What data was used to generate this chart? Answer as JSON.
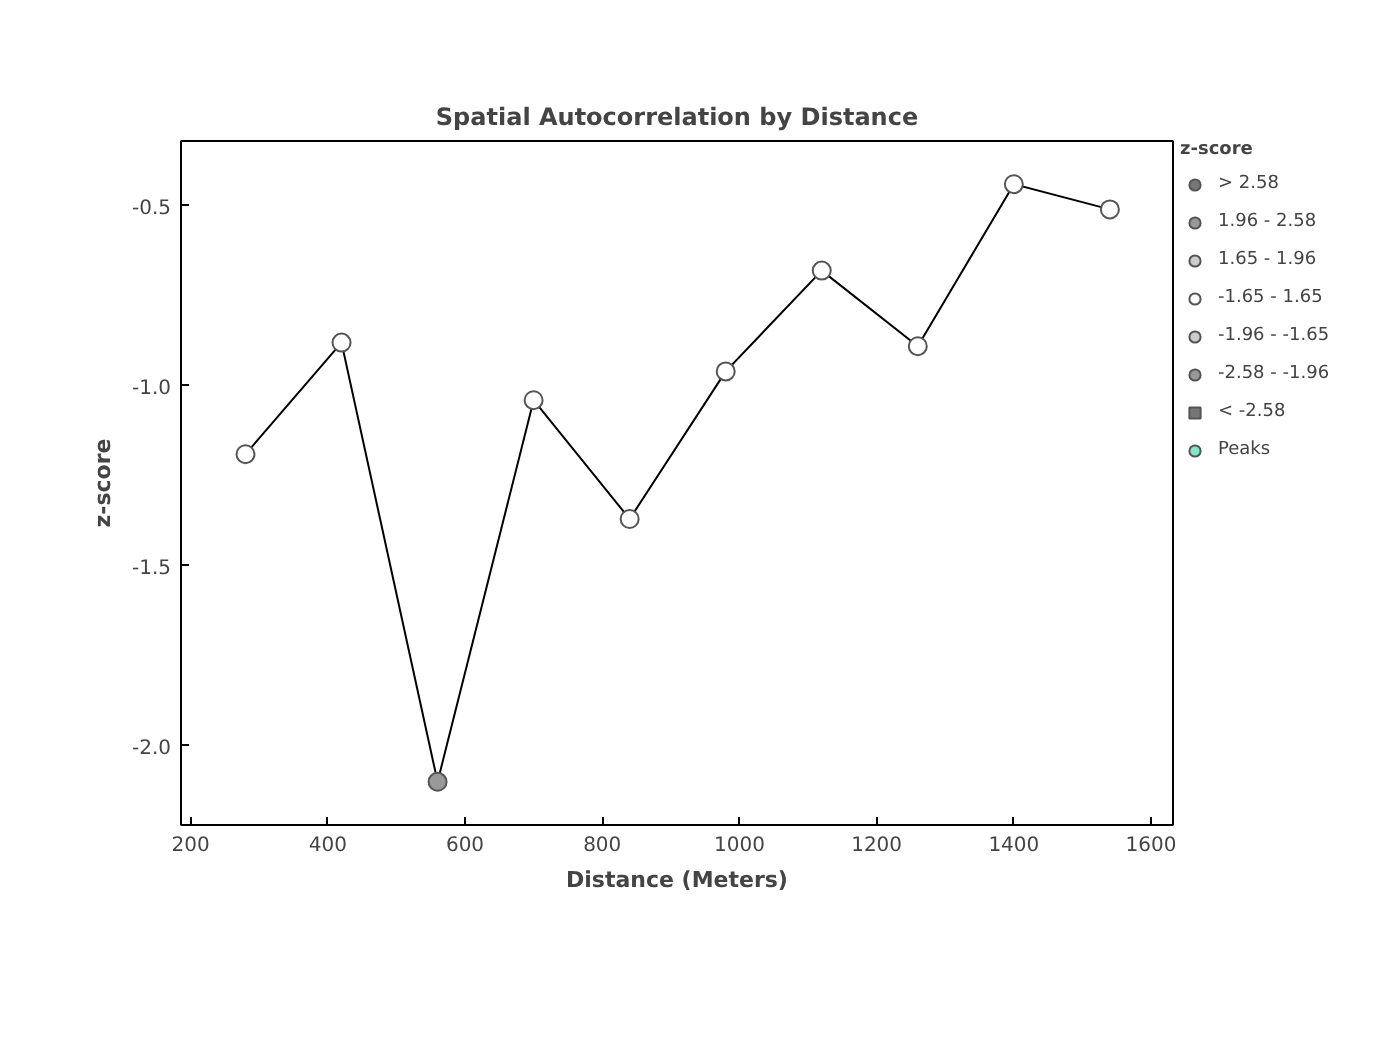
{
  "chart_data": {
    "type": "line",
    "title": "Spatial Autocorrelation by Distance",
    "xlabel": "Distance (Meters)",
    "ylabel": "z-score",
    "legend_title": "z-score",
    "x": [
      280,
      420,
      560,
      700,
      840,
      980,
      1120,
      1260,
      1400,
      1540
    ],
    "series": [
      {
        "type": "line",
        "color": "#000000",
        "marker": "none",
        "values": [
          -1.19,
          -0.88,
          -2.1,
          -1.04,
          -1.37,
          -0.96,
          -0.68,
          -0.89,
          -0.44,
          -0.51
        ]
      },
      {
        "type": "scatter",
        "name": "> 2.58",
        "color": "#777777",
        "marker": "circle",
        "values": [
          null,
          null,
          null,
          null,
          null,
          null,
          null,
          null,
          null,
          null
        ]
      },
      {
        "type": "scatter",
        "name": "1.96 - 2.58",
        "color": "#999999",
        "marker": "circle",
        "values": [
          null,
          null,
          null,
          null,
          null,
          null,
          null,
          null,
          null,
          null
        ]
      },
      {
        "type": "scatter",
        "name": "1.65 - 1.96",
        "color": "#cccccc",
        "marker": "circle",
        "values": [
          null,
          null,
          null,
          null,
          null,
          null,
          null,
          null,
          null,
          null
        ]
      },
      {
        "type": "scatter",
        "name": "-1.65 - 1.65",
        "color": "#ffffff",
        "marker": "circle",
        "values": [
          -1.19,
          -0.88,
          null,
          -1.04,
          -1.37,
          -0.96,
          -0.68,
          -0.89,
          -0.44,
          -0.51
        ]
      },
      {
        "type": "scatter",
        "name": "-1.96 - -1.65",
        "color": "#cccccc",
        "marker": "circle",
        "values": [
          null,
          null,
          null,
          null,
          null,
          null,
          null,
          null,
          null,
          null
        ]
      },
      {
        "type": "scatter",
        "name": "-2.58 - -1.96",
        "color": "#999999",
        "marker": "circle",
        "values": [
          null,
          null,
          -2.1,
          null,
          null,
          null,
          null,
          null,
          null,
          null
        ]
      },
      {
        "type": "scatter",
        "name": "< -2.58",
        "color": "#777777",
        "marker": "square",
        "values": [
          null,
          null,
          null,
          null,
          null,
          null,
          null,
          null,
          null,
          null
        ]
      },
      {
        "type": "scatter",
        "name": "Peaks",
        "color": "#80e8c8",
        "marker": "circle",
        "values": [
          null,
          null,
          null,
          null,
          null,
          null,
          null,
          null,
          null,
          null
        ]
      }
    ],
    "xlim": [
      186,
      1632
    ],
    "ylim": [
      -2.22,
      -0.32
    ],
    "xticks": [
      200,
      400,
      600,
      800,
      1000,
      1200,
      1400,
      1600
    ],
    "yticks": [
      {
        "value": -2.0,
        "label": "-2.0"
      },
      {
        "value": -1.5,
        "label": "-1.5"
      },
      {
        "value": -1.0,
        "label": "-1.0"
      },
      {
        "value": -0.5,
        "label": "-0.5"
      }
    ],
    "grid": false,
    "legend": "right"
  }
}
